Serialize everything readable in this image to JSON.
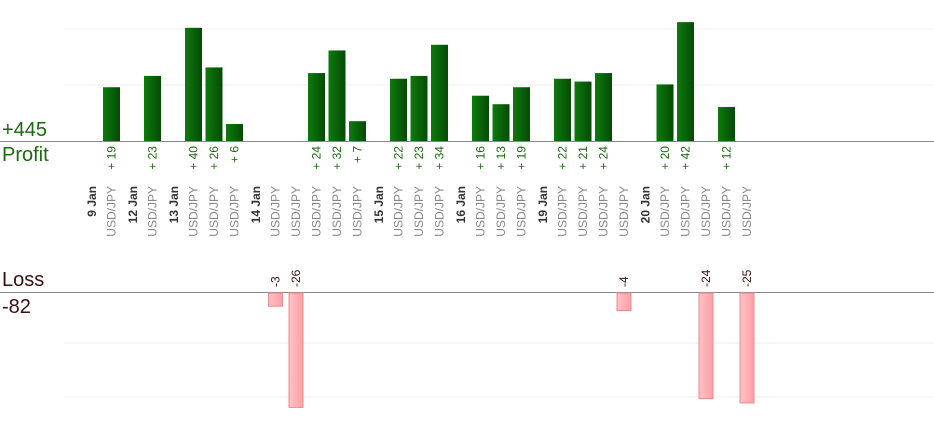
{
  "summary": {
    "profit_total": "+445",
    "profit_label": "Profit",
    "loss_label": "Loss",
    "loss_total": "-82"
  },
  "colors": {
    "profit_bar": "#0c6b0c",
    "profit_bar_dark": "#064d06",
    "profit_text": "#1a6b0e",
    "loss_bar": "#ffb5b8",
    "loss_bar_border": "#e88a8e",
    "loss_text": "#3a0f0f",
    "date_text": "#333333",
    "pair_text": "#888888",
    "grid": "#eeeeee",
    "axis": "#888888"
  },
  "chart_data": {
    "type": "bar",
    "title": "",
    "xlabel": "",
    "ylabel": "",
    "profit_ylim": [
      0,
      52
    ],
    "loss_ylim": [
      0,
      26
    ],
    "grid": true,
    "days": [
      {
        "date": "9 Jan",
        "trades": [
          {
            "pair": "USD/JPY",
            "value": 19
          }
        ]
      },
      {
        "date": "12 Jan",
        "trades": [
          {
            "pair": "USD/JPY",
            "value": 23
          }
        ]
      },
      {
        "date": "13 Jan",
        "trades": [
          {
            "pair": "USD/JPY",
            "value": 40
          },
          {
            "pair": "USD/JPY",
            "value": 26
          },
          {
            "pair": "USD/JPY",
            "value": 6
          }
        ]
      },
      {
        "date": "14 Jan",
        "trades": [
          {
            "pair": "USD/JPY",
            "value": -3
          },
          {
            "pair": "USD/JPY",
            "value": -26
          },
          {
            "pair": "USD/JPY",
            "value": 24
          },
          {
            "pair": "USD/JPY",
            "value": 32
          },
          {
            "pair": "USD/JPY",
            "value": 7
          }
        ]
      },
      {
        "date": "15 Jan",
        "trades": [
          {
            "pair": "USD/JPY",
            "value": 22
          },
          {
            "pair": "USD/JPY",
            "value": 23
          },
          {
            "pair": "USD/JPY",
            "value": 34
          }
        ]
      },
      {
        "date": "16 Jan",
        "trades": [
          {
            "pair": "USD/JPY",
            "value": 16
          },
          {
            "pair": "USD/JPY",
            "value": 13
          },
          {
            "pair": "USD/JPY",
            "value": 19
          }
        ]
      },
      {
        "date": "19 Jan",
        "trades": [
          {
            "pair": "USD/JPY",
            "value": 22
          },
          {
            "pair": "USD/JPY",
            "value": 21
          },
          {
            "pair": "USD/JPY",
            "value": 24
          },
          {
            "pair": "USD/JPY",
            "value": -4
          }
        ]
      },
      {
        "date": "20 Jan",
        "trades": [
          {
            "pair": "USD/JPY",
            "value": 20
          },
          {
            "pair": "USD/JPY",
            "value": 42
          },
          {
            "pair": "USD/JPY",
            "value": -24
          },
          {
            "pair": "USD/JPY",
            "value": 12
          },
          {
            "pair": "USD/JPY",
            "value": -25
          }
        ]
      }
    ]
  }
}
